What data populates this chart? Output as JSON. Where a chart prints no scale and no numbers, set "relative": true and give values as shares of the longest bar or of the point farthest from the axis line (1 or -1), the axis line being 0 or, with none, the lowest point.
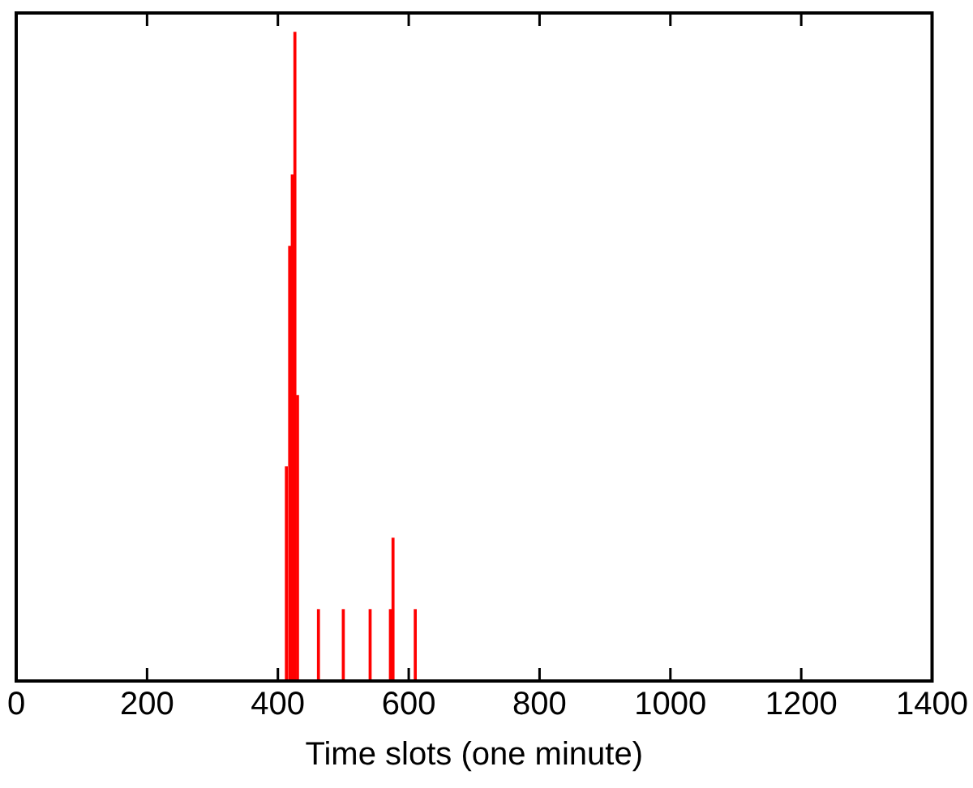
{
  "chart_data": {
    "type": "bar",
    "xlabel": "Time slots (one minute)",
    "relative": true,
    "tick_labels": "x",
    "grid": false,
    "legend": false,
    "x": [
      413,
      418,
      422,
      426,
      430,
      462,
      500,
      541,
      572,
      576,
      610
    ],
    "series": [
      {
        "color": "#ff0000",
        "values": [
          0.33,
          0.67,
          0.78,
          1,
          0.44,
          0.11,
          0.11,
          0.11,
          0.11,
          0.22,
          0.11
        ]
      }
    ],
    "xlim": [
      0,
      1400
    ],
    "xticks": [
      0,
      200,
      400,
      600,
      800,
      1000,
      1200,
      1400
    ]
  }
}
